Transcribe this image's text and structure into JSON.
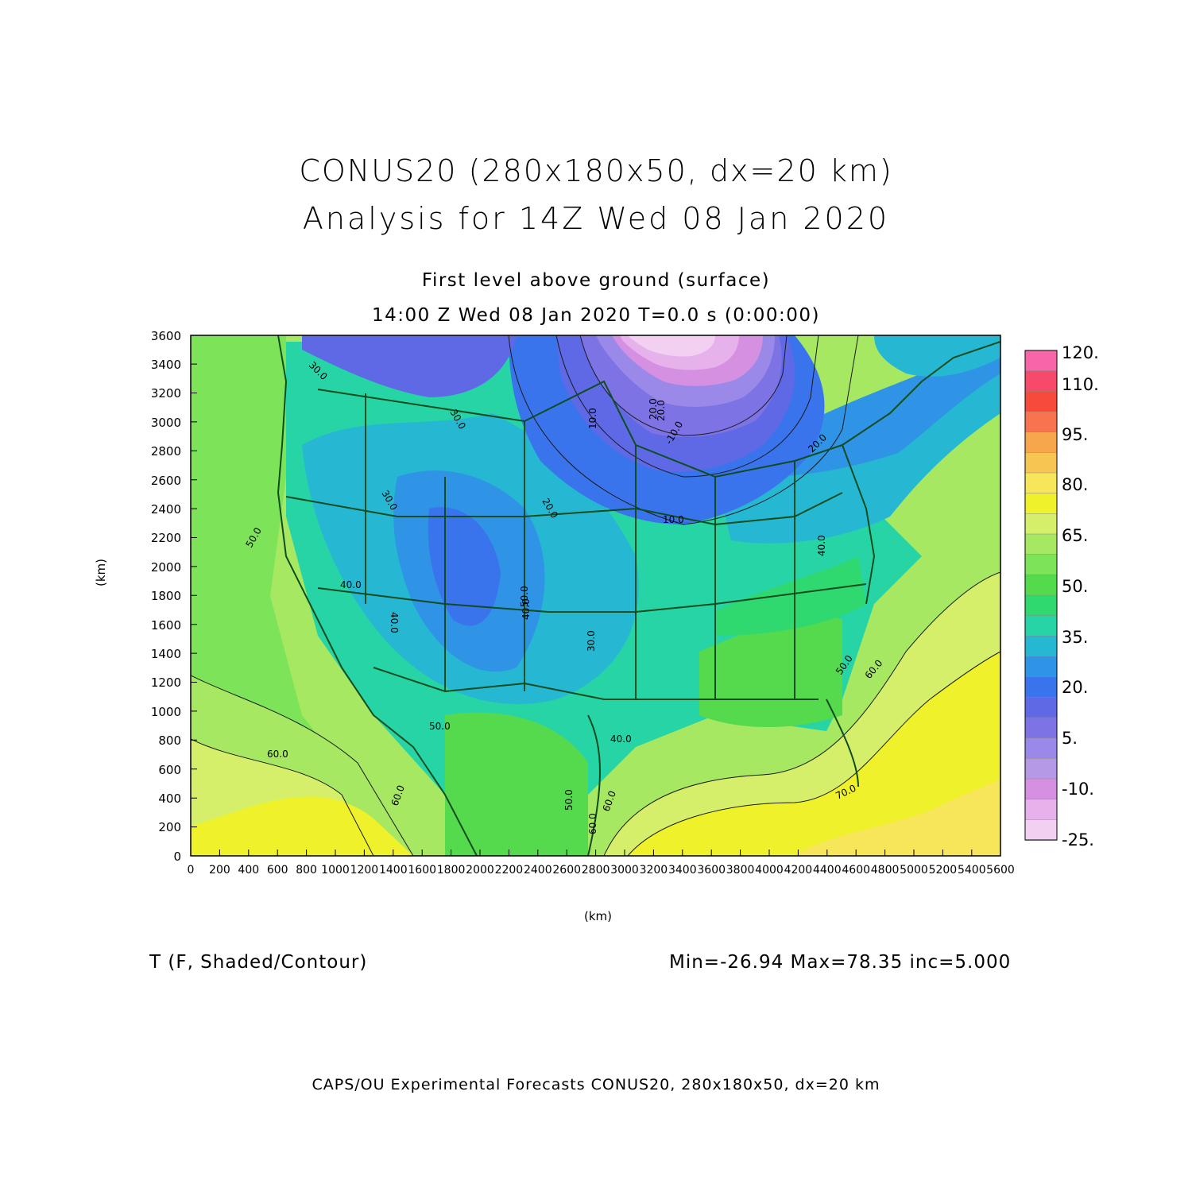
{
  "titles": {
    "line1": "CONUS20 (280x180x50, dx=20 km)",
    "line2": "Analysis for 14Z Wed 08 Jan 2020",
    "subtitle1": "First level above ground (surface)",
    "subtitle2": "14:00 Z Wed 08 Jan 2020    T=0.0 s (0:00:00)"
  },
  "axes": {
    "xlabel": "(km)",
    "ylabel": "(km)",
    "x_range": [
      0,
      5600
    ],
    "y_range": [
      0,
      3600
    ],
    "x_ticks": [
      "0",
      "200",
      "400",
      "600",
      "800",
      "1000",
      "1200",
      "1400",
      "1600",
      "1800",
      "2000",
      "2200",
      "2400",
      "2600",
      "2800",
      "3000",
      "3200",
      "3400",
      "3600",
      "3800",
      "4000",
      "4200",
      "4400",
      "4600",
      "4800",
      "5000",
      "5200",
      "5400",
      "5600"
    ],
    "y_ticks": [
      "0",
      "200",
      "400",
      "600",
      "800",
      "1000",
      "1200",
      "1400",
      "1600",
      "1800",
      "2000",
      "2200",
      "2400",
      "2600",
      "2800",
      "3000",
      "3200",
      "3400",
      "3600"
    ]
  },
  "colorbar": {
    "labels": [
      "120.",
      "110.",
      "95.",
      "80.",
      "65.",
      "50.",
      "35.",
      "20.",
      "5.",
      "-10.",
      "-25."
    ],
    "colors_top_to_bottom": [
      "#f766a8",
      "#f7496a",
      "#f74a3c",
      "#f7744f",
      "#f7a64c",
      "#f7c652",
      "#f7e55a",
      "#eff22a",
      "#d6ef6a",
      "#a7e862",
      "#7de459",
      "#55da4e",
      "#30d870",
      "#27d4a6",
      "#26b8d2",
      "#2f93e6",
      "#3a74ec",
      "#5f69e6",
      "#7d73e4",
      "#9a89e8",
      "#b699e6",
      "#d690e2",
      "#e7b1ec",
      "#f1d0f2"
    ]
  },
  "contour_labels": [
    "50.0",
    "60.0",
    "40.0",
    "50.0",
    "60.0",
    "30.0",
    "40.0",
    "20.0",
    "10.0",
    "20.0",
    "20.0",
    "10.0",
    "30.0",
    "30.0",
    "40.0",
    "50.0",
    "60.0",
    "60.0",
    "50.0",
    "70.0",
    "40.0",
    "30.0",
    "50.0",
    "40.0",
    "-10.0",
    "20.0",
    "60.0"
  ],
  "field_label": "T (F, Shaded/Contour)",
  "stats": "Min=-26.94  Max=78.35  inc=5.000",
  "footer": "CAPS/OU Experimental Forecasts  CONUS20, 280x180x50, dx=20 km"
}
